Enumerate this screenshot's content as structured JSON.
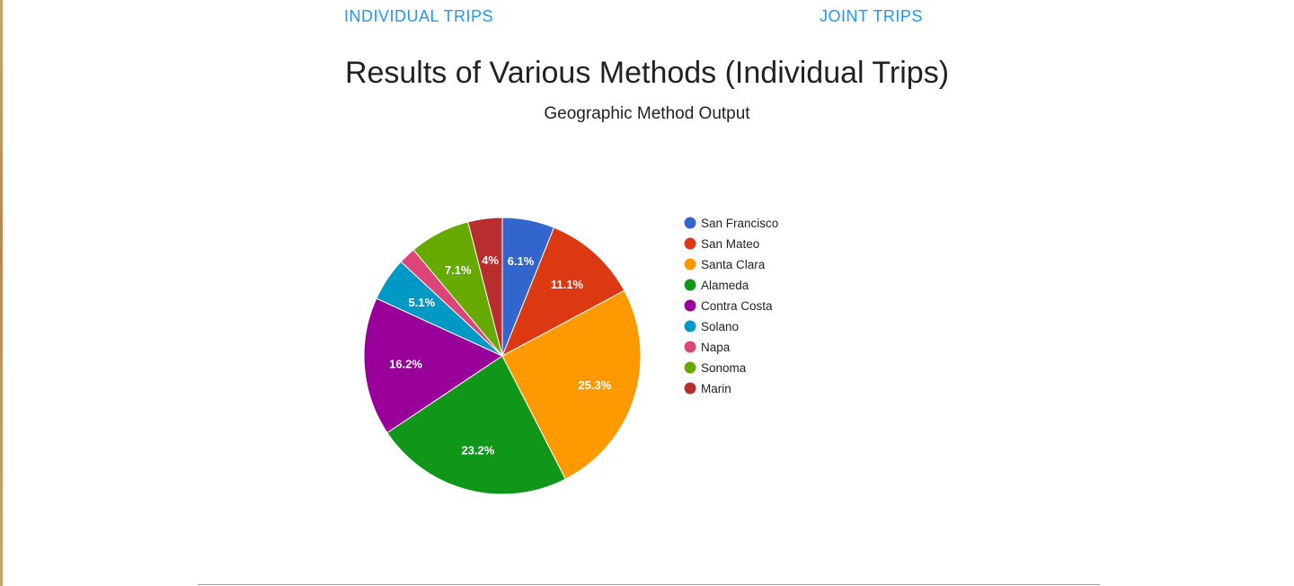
{
  "tabs": {
    "individual": "INDIVIDUAL TRIPS",
    "joint": "JOINT TRIPS"
  },
  "header": {
    "title": "Results of Various Methods (Individual Trips)",
    "subtitle": "Geographic Method Output"
  },
  "colors": {
    "tab_link": "#2196f3",
    "title_text": "#222222"
  },
  "chart_data": {
    "type": "pie",
    "legend_position": "right",
    "slices": [
      {
        "label": "San Francisco",
        "value": 6.1,
        "display": "6.1%",
        "color": "#3366cc"
      },
      {
        "label": "San Mateo",
        "value": 11.1,
        "display": "11.1%",
        "color": "#dc3912"
      },
      {
        "label": "Santa Clara",
        "value": 25.3,
        "display": "25.3%",
        "color": "#ff9900"
      },
      {
        "label": "Alameda",
        "value": 23.2,
        "display": "23.2%",
        "color": "#109618"
      },
      {
        "label": "Contra Costa",
        "value": 16.2,
        "display": "16.2%",
        "color": "#990099"
      },
      {
        "label": "Solano",
        "value": 5.1,
        "display": "5.1%",
        "color": "#0099c6"
      },
      {
        "label": "Napa",
        "value": 2.0,
        "display": "",
        "color": "#dd4477"
      },
      {
        "label": "Sonoma",
        "value": 7.1,
        "display": "7.1%",
        "color": "#66aa00"
      },
      {
        "label": "Marin",
        "value": 4.0,
        "display": "4%",
        "color": "#b82e2e"
      }
    ]
  }
}
